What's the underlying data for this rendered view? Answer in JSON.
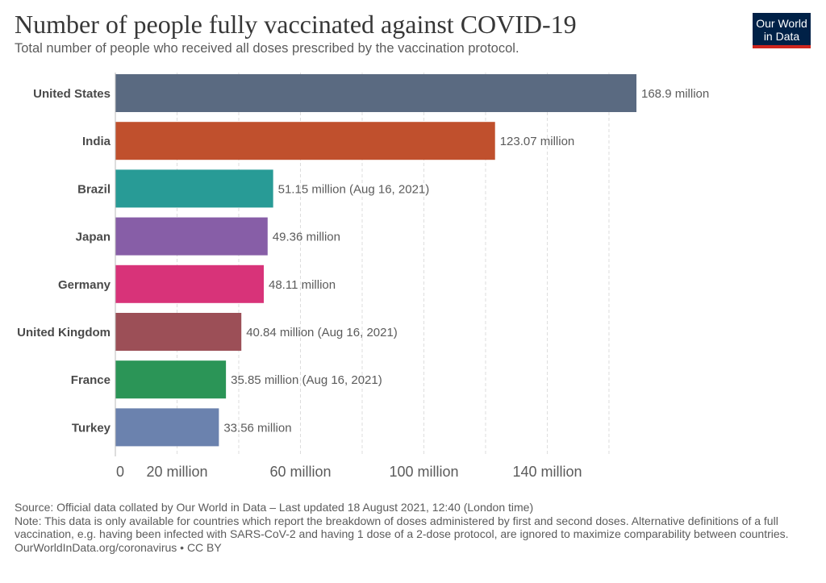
{
  "header": {
    "title": "Number of people fully vaccinated against COVID-19",
    "subtitle": "Total number of people who received all doses prescribed by the vaccination protocol."
  },
  "logo": {
    "line1": "Our World",
    "line2": "in Data"
  },
  "chart_data": {
    "type": "bar",
    "orientation": "horizontal",
    "title": "Number of people fully vaccinated against COVID-19",
    "subtitle": "Total number of people who received all doses prescribed by the vaccination protocol.",
    "categories": [
      "United States",
      "India",
      "Brazil",
      "Japan",
      "Germany",
      "United Kingdom",
      "France",
      "Turkey"
    ],
    "values": [
      168.9,
      123.07,
      51.15,
      49.36,
      48.11,
      40.84,
      35.85,
      33.56
    ],
    "value_labels": [
      "168.9 million",
      "123.07 million",
      "51.15 million (Aug 16, 2021)",
      "49.36 million",
      "48.11 million",
      "40.84 million (Aug 16, 2021)",
      "35.85 million (Aug 16, 2021)",
      "33.56 million"
    ],
    "colors": [
      "#5a6a81",
      "#c0502d",
      "#289b96",
      "#875ea7",
      "#d83379",
      "#9c4f57",
      "#2b9557",
      "#6b82ae"
    ],
    "x_ticks": [
      0,
      20,
      60,
      100,
      140
    ],
    "x_tick_labels": [
      "0",
      "20 million",
      "60 million",
      "100 million",
      "140 million"
    ],
    "gridlines_at": [
      20,
      40,
      60,
      80,
      100,
      120,
      140,
      160
    ],
    "xlim": [
      0,
      168.9
    ],
    "unit": "million",
    "grid": "vertical dashed",
    "legend": "none"
  },
  "footer": {
    "source": "Source: Official data collated by Our World in Data – Last updated 18 August 2021, 12:40 (London time)",
    "note": "Note: This data is only available for countries which report the breakdown of doses administered by first and second doses. Alternative definitions of a full vaccination, e.g. having been infected with SARS-CoV-2 and having 1 dose of a 2-dose protocol, are ignored to maximize comparability between countries.",
    "credit": "OurWorldInData.org/coronavirus • CC BY"
  }
}
